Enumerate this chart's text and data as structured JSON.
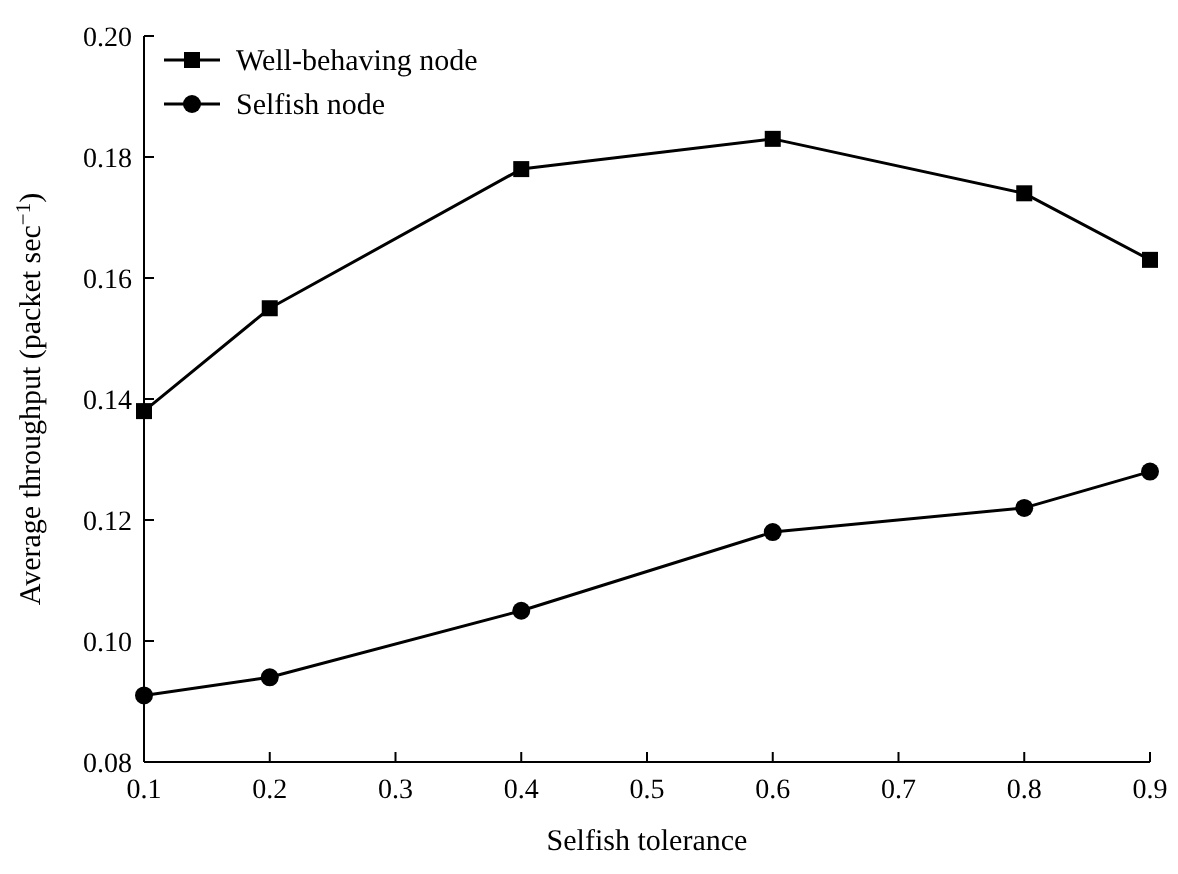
{
  "chart_data": {
    "type": "line",
    "xlabel": "Selfish tolerance",
    "ylabel": "Average throughput (packet sec$^{−1}$)",
    "x": [
      0.1,
      0.2,
      0.4,
      0.6,
      0.8,
      0.9
    ],
    "series": [
      {
        "name": "Well-behaving node",
        "color": "#000000",
        "marker": "square",
        "values": [
          0.138,
          0.155,
          0.178,
          0.183,
          0.174,
          0.163
        ]
      },
      {
        "name": "Selfish node",
        "color": "#000000",
        "marker": "circle",
        "values": [
          0.091,
          0.094,
          0.105,
          0.118,
          0.122,
          0.128
        ]
      }
    ],
    "xlim": [
      0.1,
      0.9
    ],
    "xticks": [
      0.1,
      0.2,
      0.3,
      0.4,
      0.5,
      0.6,
      0.7,
      0.8,
      0.9
    ],
    "ylim": [
      0.08,
      0.2
    ],
    "yticks": [
      {
        "value": 0.08,
        "label": "0.08"
      },
      {
        "value": 0.1,
        "label": "0.10"
      },
      {
        "value": 0.12,
        "label": "0.12"
      },
      {
        "value": 0.14,
        "label": "0.14"
      },
      {
        "value": 0.16,
        "label": "0.16"
      },
      {
        "value": 0.18,
        "label": "0.18"
      },
      {
        "value": 0.2,
        "label": "0.20"
      }
    ],
    "legend": "top left",
    "line_style": "solid"
  }
}
